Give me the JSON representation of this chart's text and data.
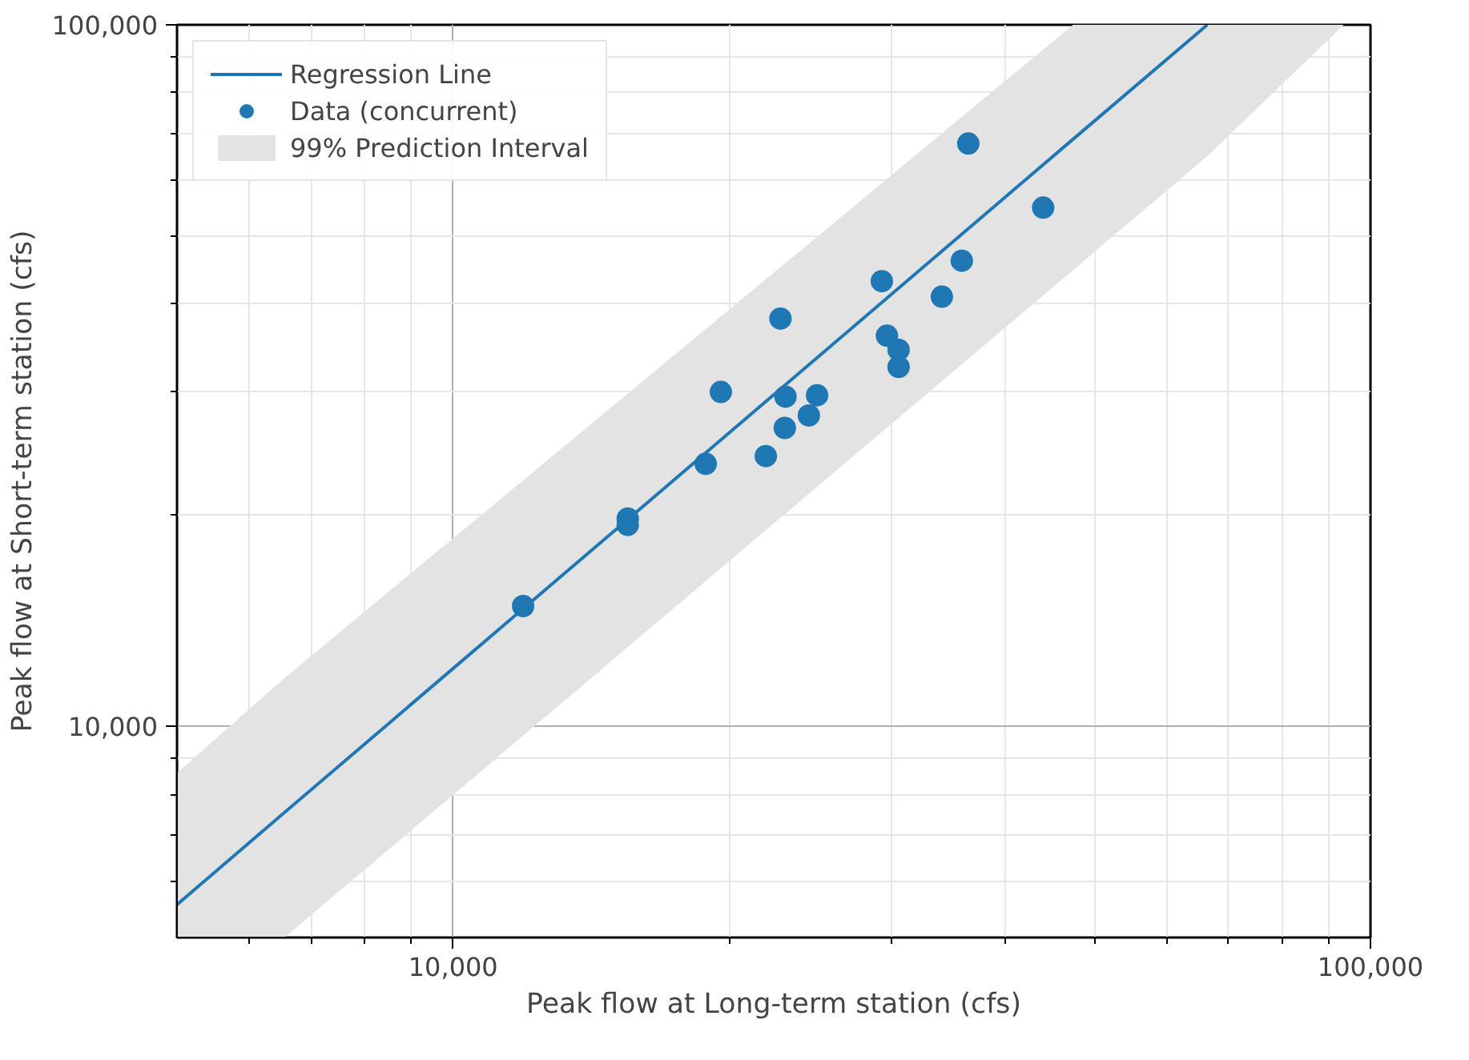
{
  "chart_data": {
    "type": "scatter",
    "xlabel": "Peak flow at Long-term station (cfs)",
    "ylabel": "Peak flow at Short-term station (cfs)",
    "log": "xy",
    "grid": true,
    "legend": "top left",
    "xlim": [
      5000,
      100000
    ],
    "ylim": [
      5000,
      100000
    ],
    "xticks": [
      {
        "value": 6000,
        "label": null
      },
      {
        "value": 7000,
        "label": null
      },
      {
        "value": 8000,
        "label": null
      },
      {
        "value": 9000,
        "label": null
      },
      {
        "value": 10000,
        "label": "10,000"
      },
      {
        "value": 20000,
        "label": null
      },
      {
        "value": 30000,
        "label": null
      },
      {
        "value": 40000,
        "label": null
      },
      {
        "value": 50000,
        "label": null
      },
      {
        "value": 60000,
        "label": null
      },
      {
        "value": 70000,
        "label": null
      },
      {
        "value": 80000,
        "label": null
      },
      {
        "value": 90000,
        "label": null
      },
      {
        "value": 100000,
        "label": "100,000"
      }
    ],
    "yticks": [
      {
        "value": 6000,
        "label": null
      },
      {
        "value": 7000,
        "label": null
      },
      {
        "value": 8000,
        "label": null
      },
      {
        "value": 9000,
        "label": null
      },
      {
        "value": 10000,
        "label": "10,000"
      },
      {
        "value": 20000,
        "label": null
      },
      {
        "value": 30000,
        "label": null
      },
      {
        "value": 40000,
        "label": null
      },
      {
        "value": 50000,
        "label": null
      },
      {
        "value": 60000,
        "label": null
      },
      {
        "value": 70000,
        "label": null
      },
      {
        "value": 80000,
        "label": null
      },
      {
        "value": 90000,
        "label": null
      },
      {
        "value": 100000,
        "label": "100,000"
      }
    ],
    "series": [
      {
        "name": "Regression Line",
        "type": "line",
        "color": "#1f77b4",
        "line_style": "solid",
        "x": [
          5000,
          6550,
          47400,
          66400,
          93500
        ],
        "values": [
          5570,
          7540,
          68700,
          100000,
          null
        ],
        "lower": [
          5000,
          5000,
          44700,
          65000,
          100000
        ],
        "upper": [
          8580,
          11720,
          100000,
          100000,
          100000
        ]
      },
      {
        "name": "Data (concurrent)",
        "marker": "circle",
        "color": "#1f77b4",
        "x": [
          11920,
          15500,
          15500,
          18850,
          19580,
          21920,
          22740,
          23030,
          22990,
          24420,
          24930,
          29330,
          29710,
          30590,
          30590,
          34100,
          35850,
          36440,
          43970
        ],
        "values": [
          14840,
          19780,
          19370,
          23670,
          29970,
          24280,
          38130,
          29510,
          26630,
          27740,
          29650,
          43110,
          36040,
          34410,
          32530,
          40970,
          46100,
          67720,
          54880
        ]
      },
      {
        "name": "99% Prediction Interval",
        "type": "area",
        "color": "#e3e3e3"
      }
    ]
  }
}
